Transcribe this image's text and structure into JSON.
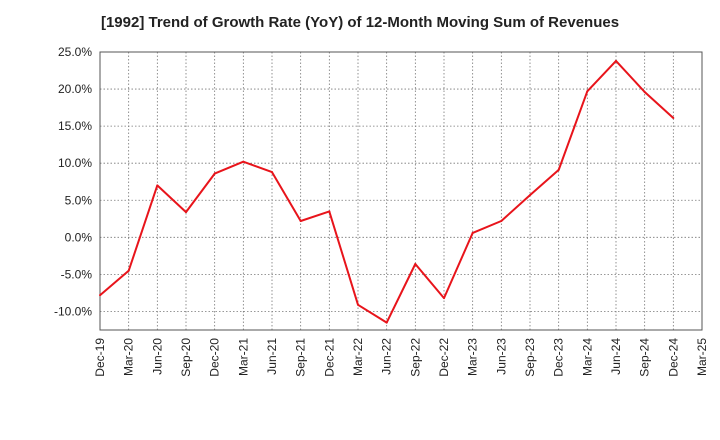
{
  "chart_data": {
    "type": "line",
    "title": "[1992]  Trend of Growth Rate (YoY) of 12-Month Moving Sum of Revenues",
    "xlabel": "",
    "ylabel": "",
    "x": [
      "Dec-19",
      "Mar-20",
      "Jun-20",
      "Sep-20",
      "Dec-20",
      "Mar-21",
      "Jun-21",
      "Sep-21",
      "Dec-21",
      "Mar-22",
      "Jun-22",
      "Sep-22",
      "Dec-22",
      "Mar-23",
      "Jun-23",
      "Sep-23",
      "Dec-23",
      "Mar-24",
      "Jun-24",
      "Sep-24",
      "Dec-24",
      "Mar-25"
    ],
    "series": [
      {
        "values": [
          -7.8,
          -4.5,
          7.0,
          3.4,
          8.6,
          10.2,
          8.8,
          2.2,
          3.5,
          -9.1,
          -11.5,
          -3.6,
          -8.2,
          0.6,
          2.2,
          5.7,
          9.1,
          19.7,
          23.8,
          19.6,
          16.1,
          null
        ]
      }
    ],
    "ylim": [
      -12.5,
      25.0
    ],
    "yticks": [
      25.0,
      20.0,
      15.0,
      10.0,
      5.0,
      0.0,
      -5.0,
      -10.0
    ],
    "ytick_labels": [
      "25.0%",
      "20.0%",
      "15.0%",
      "10.0%",
      "5.0%",
      "0.0%",
      "-5.0%",
      "-10.0%"
    ],
    "grid": true,
    "line_color": "#e8141b"
  }
}
